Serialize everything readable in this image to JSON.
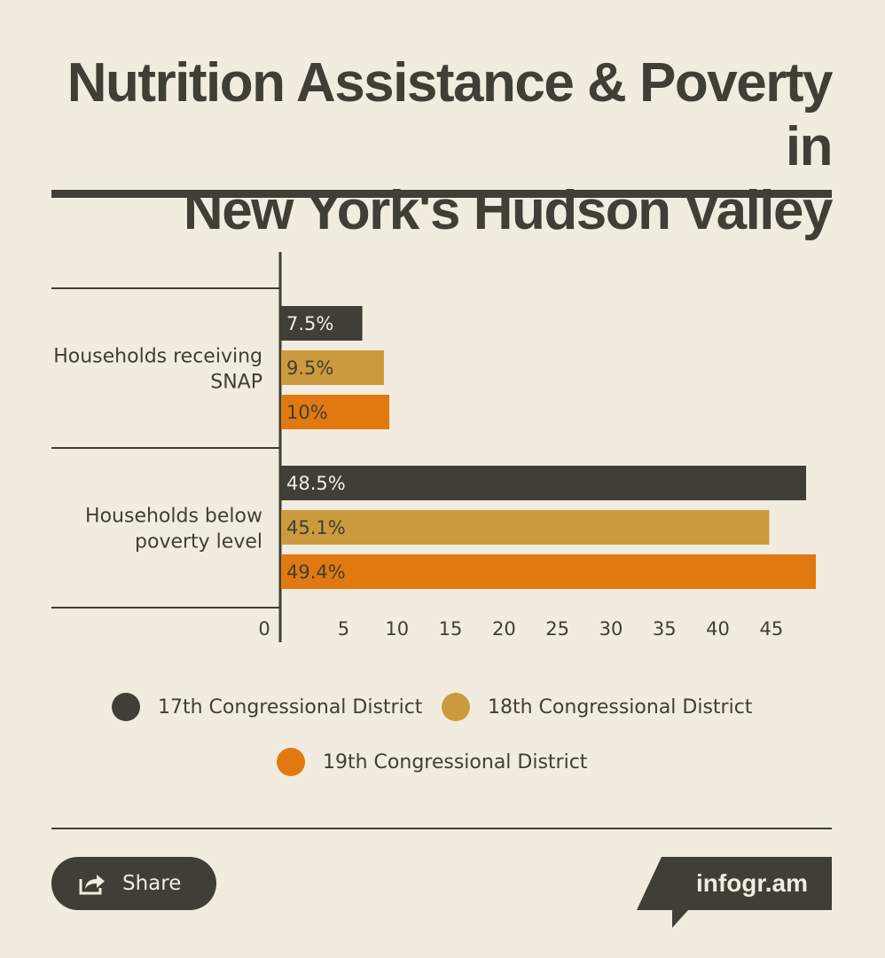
{
  "title_line1": "Nutrition Assistance & Poverty in",
  "title_line2": "New York's Hudson Valley",
  "chart_data": {
    "type": "bar",
    "orientation": "horizontal",
    "title": "Nutrition Assistance & Poverty in New York's Hudson Valley",
    "categories": [
      "Households receiving SNAP",
      "Households below poverty level"
    ],
    "category_lines": [
      [
        "Households receiving",
        "SNAP"
      ],
      [
        "Households below",
        "poverty level"
      ]
    ],
    "series": [
      {
        "name": "17th Congressional District",
        "color": "#413e37",
        "values": [
          7.5,
          48.5
        ],
        "labels": [
          "7.5%",
          "48.5%"
        ]
      },
      {
        "name": "18th Congressional District",
        "color": "#cc9a3e",
        "values": [
          9.5,
          45.1
        ],
        "labels": [
          "9.5%",
          "45.1%"
        ]
      },
      {
        "name": "19th Congressional District",
        "color": "#e07a10",
        "values": [
          10,
          49.4
        ],
        "labels": [
          "10%",
          "49.4%"
        ]
      }
    ],
    "xticks": [
      0,
      5,
      10,
      15,
      20,
      25,
      30,
      35,
      40,
      45
    ],
    "xlim": [
      0,
      49.4
    ],
    "legend_position": "bottom"
  },
  "share_label": "Share",
  "brand_label": "infogr.am",
  "icons": {
    "share": "share-arrow-icon"
  },
  "colors": {
    "background": "#f2ece0",
    "dark": "#413e37",
    "gold": "#cc9a3e",
    "orange": "#e07a10"
  }
}
